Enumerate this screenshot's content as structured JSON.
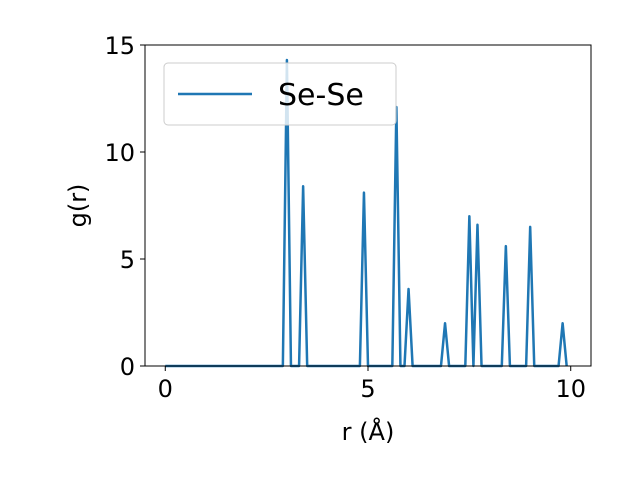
{
  "chart_data": {
    "type": "line",
    "title": "",
    "xlabel": "r (Å)",
    "ylabel": "g(r)",
    "xlim": [
      -0.5,
      10.5
    ],
    "ylim": [
      0,
      15
    ],
    "xticks": [
      0,
      5,
      10
    ],
    "yticks": [
      0,
      5,
      10,
      15
    ],
    "xtick_labels": [
      "0",
      "5",
      "10"
    ],
    "ytick_labels": [
      "0",
      "5",
      "10",
      "15"
    ],
    "grid": false,
    "legend_position": "upper left",
    "series": [
      {
        "name": "Se-Se",
        "color": "#1f77b4",
        "x": [
          0.0,
          2.9,
          3.0,
          3.1,
          3.3,
          3.4,
          3.5,
          4.8,
          4.9,
          5.0,
          5.6,
          5.7,
          5.8,
          5.9,
          6.0,
          6.1,
          6.8,
          6.9,
          7.0,
          7.4,
          7.5,
          7.6,
          7.7,
          7.8,
          8.3,
          8.4,
          8.5,
          8.9,
          9.0,
          9.1,
          9.7,
          9.8,
          9.9
        ],
        "y": [
          0,
          0,
          14.3,
          0,
          0,
          8.4,
          0,
          0,
          8.1,
          0,
          0,
          12.1,
          0,
          0,
          3.6,
          0,
          0,
          2.0,
          0,
          0,
          7.0,
          0,
          6.6,
          0,
          0,
          5.6,
          0,
          0,
          6.5,
          0,
          0,
          2.0,
          0
        ]
      }
    ]
  }
}
